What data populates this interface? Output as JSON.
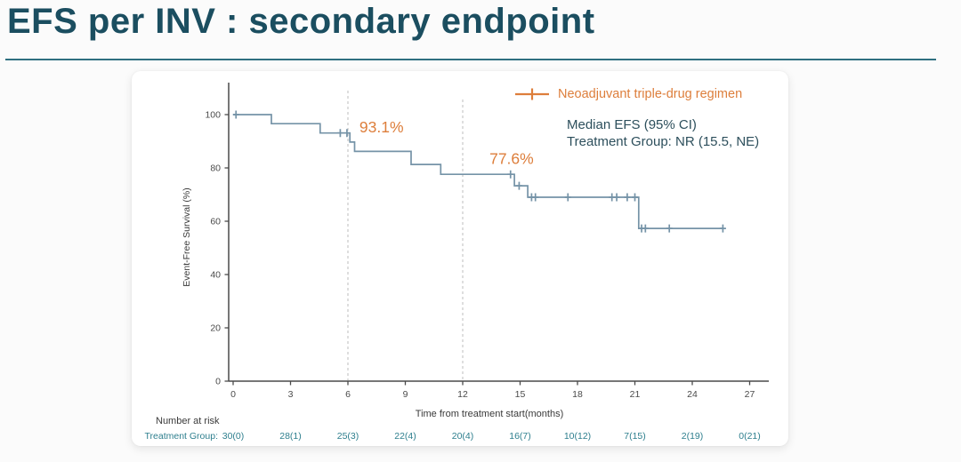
{
  "title": "EFS per INV : secondary endpoint",
  "colors": {
    "title": "#1b4e60",
    "rule": "#2f6f80",
    "curve": "#7593a7",
    "accent_orange": "#dd7e3b",
    "stats_text": "#2d4f5c",
    "axis": "#4a4a4a",
    "risk_teal": "#2e7f8e",
    "dashed": "#c2c2c2"
  },
  "chart_data": {
    "type": "line",
    "subtype": "kaplan-meier-step",
    "title": "",
    "xlabel": "Time from treatment start(months)",
    "ylabel": "Event-Free Survival (%)",
    "xticks": [
      0,
      3,
      6,
      9,
      12,
      15,
      18,
      21,
      24,
      27
    ],
    "yticks": [
      0,
      20,
      40,
      60,
      80,
      100
    ],
    "xlim": [
      0,
      28.5
    ],
    "ylim": [
      0,
      107
    ],
    "grid": false,
    "reference_lines_x": [
      6,
      12
    ],
    "legend": {
      "label": "Neoadjuvant triple-drug regimen",
      "position": "top-right"
    },
    "annotations": [
      {
        "text": "93.1%",
        "x": 6.6,
        "y": 94.8
      },
      {
        "text": "77.6%",
        "x": 13.4,
        "y": 83
      }
    ],
    "stats_note": [
      "Median EFS (95% CI)",
      "Treatment Group: NR (15.5, NE)"
    ],
    "series": [
      {
        "name": "Neoadjuvant triple-drug regimen",
        "steps": [
          [
            0,
            100
          ],
          [
            2.0,
            100
          ],
          [
            2.0,
            96.6
          ],
          [
            4.55,
            96.6
          ],
          [
            4.55,
            93.1
          ],
          [
            6.1,
            93.1
          ],
          [
            6.1,
            89.7
          ],
          [
            6.35,
            89.7
          ],
          [
            6.35,
            86.2
          ],
          [
            9.3,
            86.2
          ],
          [
            9.3,
            81.3
          ],
          [
            10.85,
            81.3
          ],
          [
            10.85,
            77.6
          ],
          [
            14.7,
            77.6
          ],
          [
            14.7,
            73.3
          ],
          [
            15.4,
            73.3
          ],
          [
            15.4,
            69.0
          ],
          [
            21.2,
            69.0
          ],
          [
            21.2,
            57.3
          ],
          [
            25.6,
            57.3
          ]
        ],
        "censors": [
          [
            0.15,
            100
          ],
          [
            5.6,
            93.1
          ],
          [
            5.95,
            93.1
          ],
          [
            14.5,
            77.6
          ],
          [
            14.95,
            73.3
          ],
          [
            15.6,
            69.0
          ],
          [
            15.8,
            69.0
          ],
          [
            17.5,
            69.0
          ],
          [
            19.8,
            69.0
          ],
          [
            20.05,
            69.0
          ],
          [
            20.6,
            69.0
          ],
          [
            21.0,
            69.0
          ],
          [
            21.35,
            57.3
          ],
          [
            21.55,
            57.3
          ],
          [
            22.8,
            57.3
          ],
          [
            25.6,
            57.3
          ]
        ]
      }
    ],
    "number_at_risk": {
      "heading": "Number at risk",
      "row_label": "Treatment Group:",
      "times": [
        0,
        3,
        6,
        9,
        12,
        15,
        18,
        21,
        24,
        27
      ],
      "values": [
        "30(0)",
        "28(1)",
        "25(3)",
        "22(4)",
        "20(4)",
        "16(7)",
        "10(12)",
        "7(15)",
        "2(19)",
        "0(21)"
      ]
    }
  }
}
